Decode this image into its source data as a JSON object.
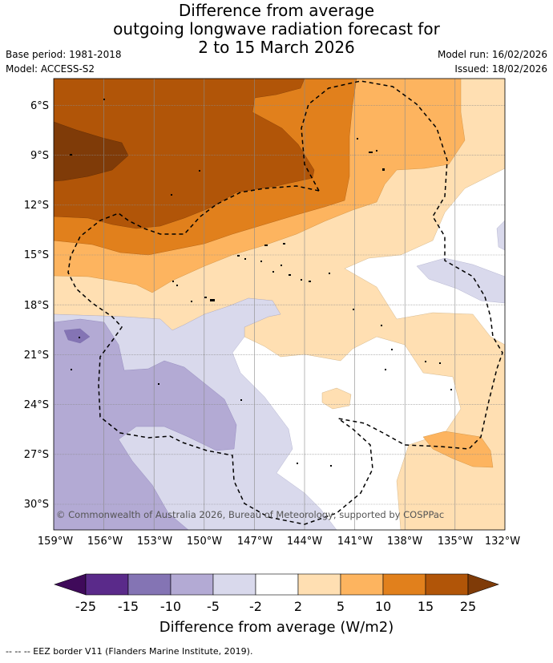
{
  "title": {
    "line1": "Difference from average",
    "line2": "outgoing longwave radiation forecast for",
    "line3": "2 to 15 March 2026"
  },
  "meta": {
    "base_period": "Base period: 1981-2018",
    "model": "Model: ACCESS-S2",
    "model_run": "Model run: 16/02/2026",
    "issued": "Issued: 18/02/2026"
  },
  "map": {
    "copyright": "© Commonwealth of Australia 2026, Bureau of Meteorology, supported by COSPPac",
    "lat_labels": [
      "6°S",
      "9°S",
      "12°S",
      "15°S",
      "18°S",
      "21°S",
      "24°S",
      "27°S",
      "30°S"
    ],
    "lon_labels": [
      "159°W",
      "156°W",
      "153°W",
      "150°W",
      "147°W",
      "144°W",
      "141°W",
      "138°W",
      "135°W",
      "132°W"
    ]
  },
  "colorbar": {
    "label": "Difference from average (W/m2)",
    "ticks": [
      "-25",
      "-15",
      "-10",
      "-5",
      "-2",
      "2",
      "5",
      "10",
      "15",
      "25"
    ],
    "colors": {
      "below_min": "#3f0a5a",
      "n25_n15": "#5a2a8a",
      "n15_n10": "#8474b4",
      "n10_n5": "#b3aad4",
      "n5_n2": "#d9d9ec",
      "n2_2": "#ffffff",
      "p2_5": "#ffdfb2",
      "p5_10": "#fdb45f",
      "p10_15": "#e1801c",
      "p15_25": "#b15508",
      "above_max": "#7f3b08"
    }
  },
  "legend_note": "--  --  -- EEZ border V11 (Flanders Marine Institute, 2019)."
}
